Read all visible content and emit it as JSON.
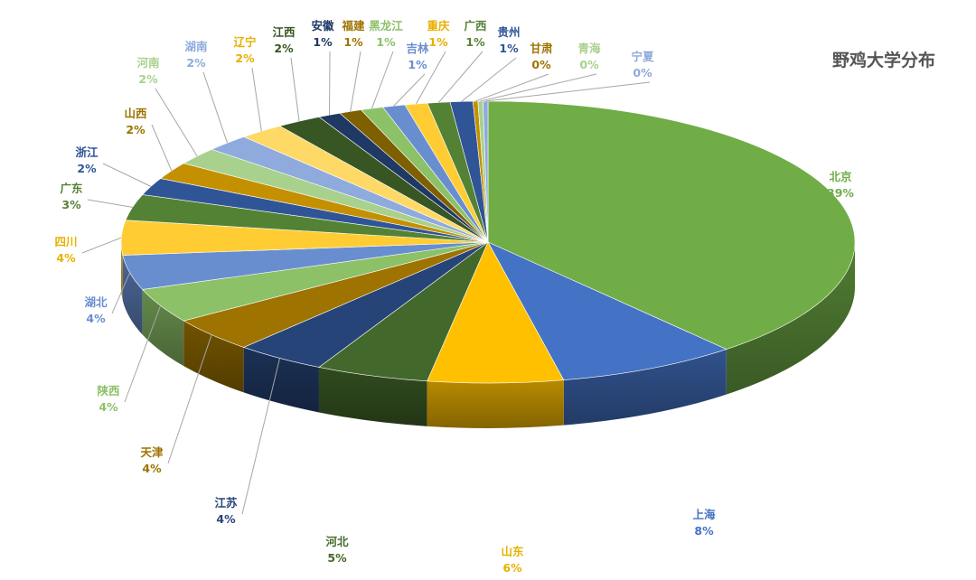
{
  "chart_data": {
    "type": "pie",
    "title": "野鸡大学分布",
    "pct_suffix": "%",
    "series": [
      {
        "name": "北京",
        "value": 39,
        "color": "#70AD47"
      },
      {
        "name": "上海",
        "value": 8,
        "color": "#4472C4"
      },
      {
        "name": "山东",
        "value": 6,
        "color": "#FFC000"
      },
      {
        "name": "河北",
        "value": 5,
        "color": "#43682B"
      },
      {
        "name": "江苏",
        "value": 4,
        "color": "#264478"
      },
      {
        "name": "天津",
        "value": 4,
        "color": "#9E7300"
      },
      {
        "name": "陕西",
        "value": 4,
        "color": "#8CC168"
      },
      {
        "name": "湖北",
        "value": 4,
        "color": "#698ED0"
      },
      {
        "name": "四川",
        "value": 4,
        "color": "#FFCD33"
      },
      {
        "name": "广东",
        "value": 3,
        "color": "#548235"
      },
      {
        "name": "浙江",
        "value": 2,
        "color": "#2F5597"
      },
      {
        "name": "山西",
        "value": 2,
        "color": "#C49000"
      },
      {
        "name": "河南",
        "value": 2,
        "color": "#A9D18E"
      },
      {
        "name": "湖南",
        "value": 2,
        "color": "#8FAADC"
      },
      {
        "name": "辽宁",
        "value": 2,
        "color": "#FFD966"
      },
      {
        "name": "江西",
        "value": 2,
        "color": "#375623"
      },
      {
        "name": "安徽",
        "value": 1,
        "color": "#1F3864"
      },
      {
        "name": "福建",
        "value": 1,
        "color": "#7F6000"
      },
      {
        "name": "黑龙江",
        "value": 1,
        "color": "#8CC168"
      },
      {
        "name": "吉林",
        "value": 1,
        "color": "#698ED0"
      },
      {
        "name": "重庆",
        "value": 1,
        "color": "#FFCD33"
      },
      {
        "name": "广西",
        "value": 1,
        "color": "#548235"
      },
      {
        "name": "贵州",
        "value": 1,
        "color": "#2F5597"
      },
      {
        "name": "甘肃",
        "value": 0,
        "color": "#C49000"
      },
      {
        "name": "青海",
        "value": 0,
        "color": "#A9D18E"
      },
      {
        "name": "宁夏",
        "value": 0,
        "color": "#8FAADC"
      }
    ]
  }
}
